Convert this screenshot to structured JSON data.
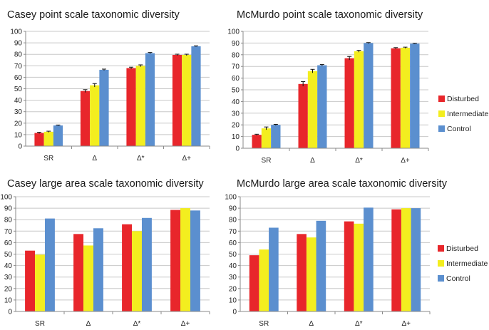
{
  "colors": {
    "Disturbed": "#e8262b",
    "Intermediate": "#f3ee1f",
    "Control": "#5b8fcf"
  },
  "chart_data": [
    {
      "type": "bar",
      "title": "Casey point scale taxonomic diversity",
      "categories": [
        "SR",
        "Δ",
        "Δ*",
        "Δ+"
      ],
      "ylim": [
        0,
        100
      ],
      "yticks": [
        "0",
        "10",
        "20",
        "30",
        "40",
        "50",
        "60",
        "70",
        "80",
        "90",
        "100"
      ],
      "grid": true,
      "error_bars": true,
      "series": [
        {
          "name": "Disturbed",
          "values": [
            11.5,
            48,
            68,
            79.5
          ],
          "errors": [
            0.6,
            1.2,
            0.8,
            0.6
          ]
        },
        {
          "name": "Intermediate",
          "values": [
            12.5,
            53,
            70,
            79.5
          ],
          "errors": [
            0.5,
            1.5,
            0.8,
            0.6
          ]
        },
        {
          "name": "Control",
          "values": [
            18,
            66.5,
            81,
            87
          ],
          "errors": [
            0.4,
            0.6,
            0.6,
            0.4
          ]
        }
      ]
    },
    {
      "type": "bar",
      "title": "McMurdo point scale taxonomic diversity",
      "categories": [
        "SR",
        "Δ",
        "Δ*",
        "Δ+"
      ],
      "ylim": [
        0,
        100
      ],
      "yticks": [
        "0",
        "10",
        "20",
        "30",
        "40",
        "50",
        "60",
        "70",
        "80",
        "90",
        "100"
      ],
      "grid": true,
      "error_bars": true,
      "series": [
        {
          "name": "Disturbed",
          "values": [
            11.5,
            55,
            77,
            85.5
          ],
          "errors": [
            0.5,
            2,
            1.5,
            0.6
          ]
        },
        {
          "name": "Intermediate",
          "values": [
            17,
            66,
            83,
            86
          ],
          "errors": [
            1.2,
            1.5,
            0.8,
            0.5
          ]
        },
        {
          "name": "Control",
          "values": [
            20,
            71,
            90,
            89.5
          ],
          "errors": [
            0.4,
            0.6,
            0.4,
            0.3
          ]
        }
      ]
    },
    {
      "type": "bar",
      "title": "Casey large area scale taxonomic diversity",
      "categories": [
        "SR",
        "Δ",
        "Δ*",
        "Δ+"
      ],
      "ylim": [
        0,
        100
      ],
      "yticks": [
        "0",
        "10",
        "20",
        "30",
        "40",
        "50",
        "60",
        "70",
        "80",
        "90",
        "100"
      ],
      "grid": true,
      "error_bars": false,
      "series": [
        {
          "name": "Disturbed",
          "values": [
            53,
            67.5,
            76,
            88.5
          ]
        },
        {
          "name": "Intermediate",
          "values": [
            49.5,
            57.5,
            70,
            90
          ]
        },
        {
          "name": "Control",
          "values": [
            81,
            72.5,
            81.5,
            88
          ]
        }
      ]
    },
    {
      "type": "bar",
      "title": "McMurdo large area scale taxonomic diversity",
      "categories": [
        "SR",
        "Δ",
        "Δ*",
        "Δ+"
      ],
      "ylim": [
        0,
        100
      ],
      "yticks": [
        "0",
        "10",
        "20",
        "30",
        "40",
        "50",
        "60",
        "70",
        "80",
        "90",
        "100"
      ],
      "grid": true,
      "error_bars": false,
      "series": [
        {
          "name": "Disturbed",
          "values": [
            49,
            67.5,
            78.5,
            89
          ]
        },
        {
          "name": "Intermediate",
          "values": [
            54,
            64.5,
            76.5,
            90
          ]
        },
        {
          "name": "Control",
          "values": [
            73,
            79,
            90.5,
            90
          ]
        }
      ]
    }
  ],
  "legends": [
    {
      "items": [
        "Disturbed",
        "Intermediate",
        "Control"
      ]
    },
    {
      "items": [
        "Disturbed",
        "Intermediate",
        "Control"
      ]
    }
  ]
}
